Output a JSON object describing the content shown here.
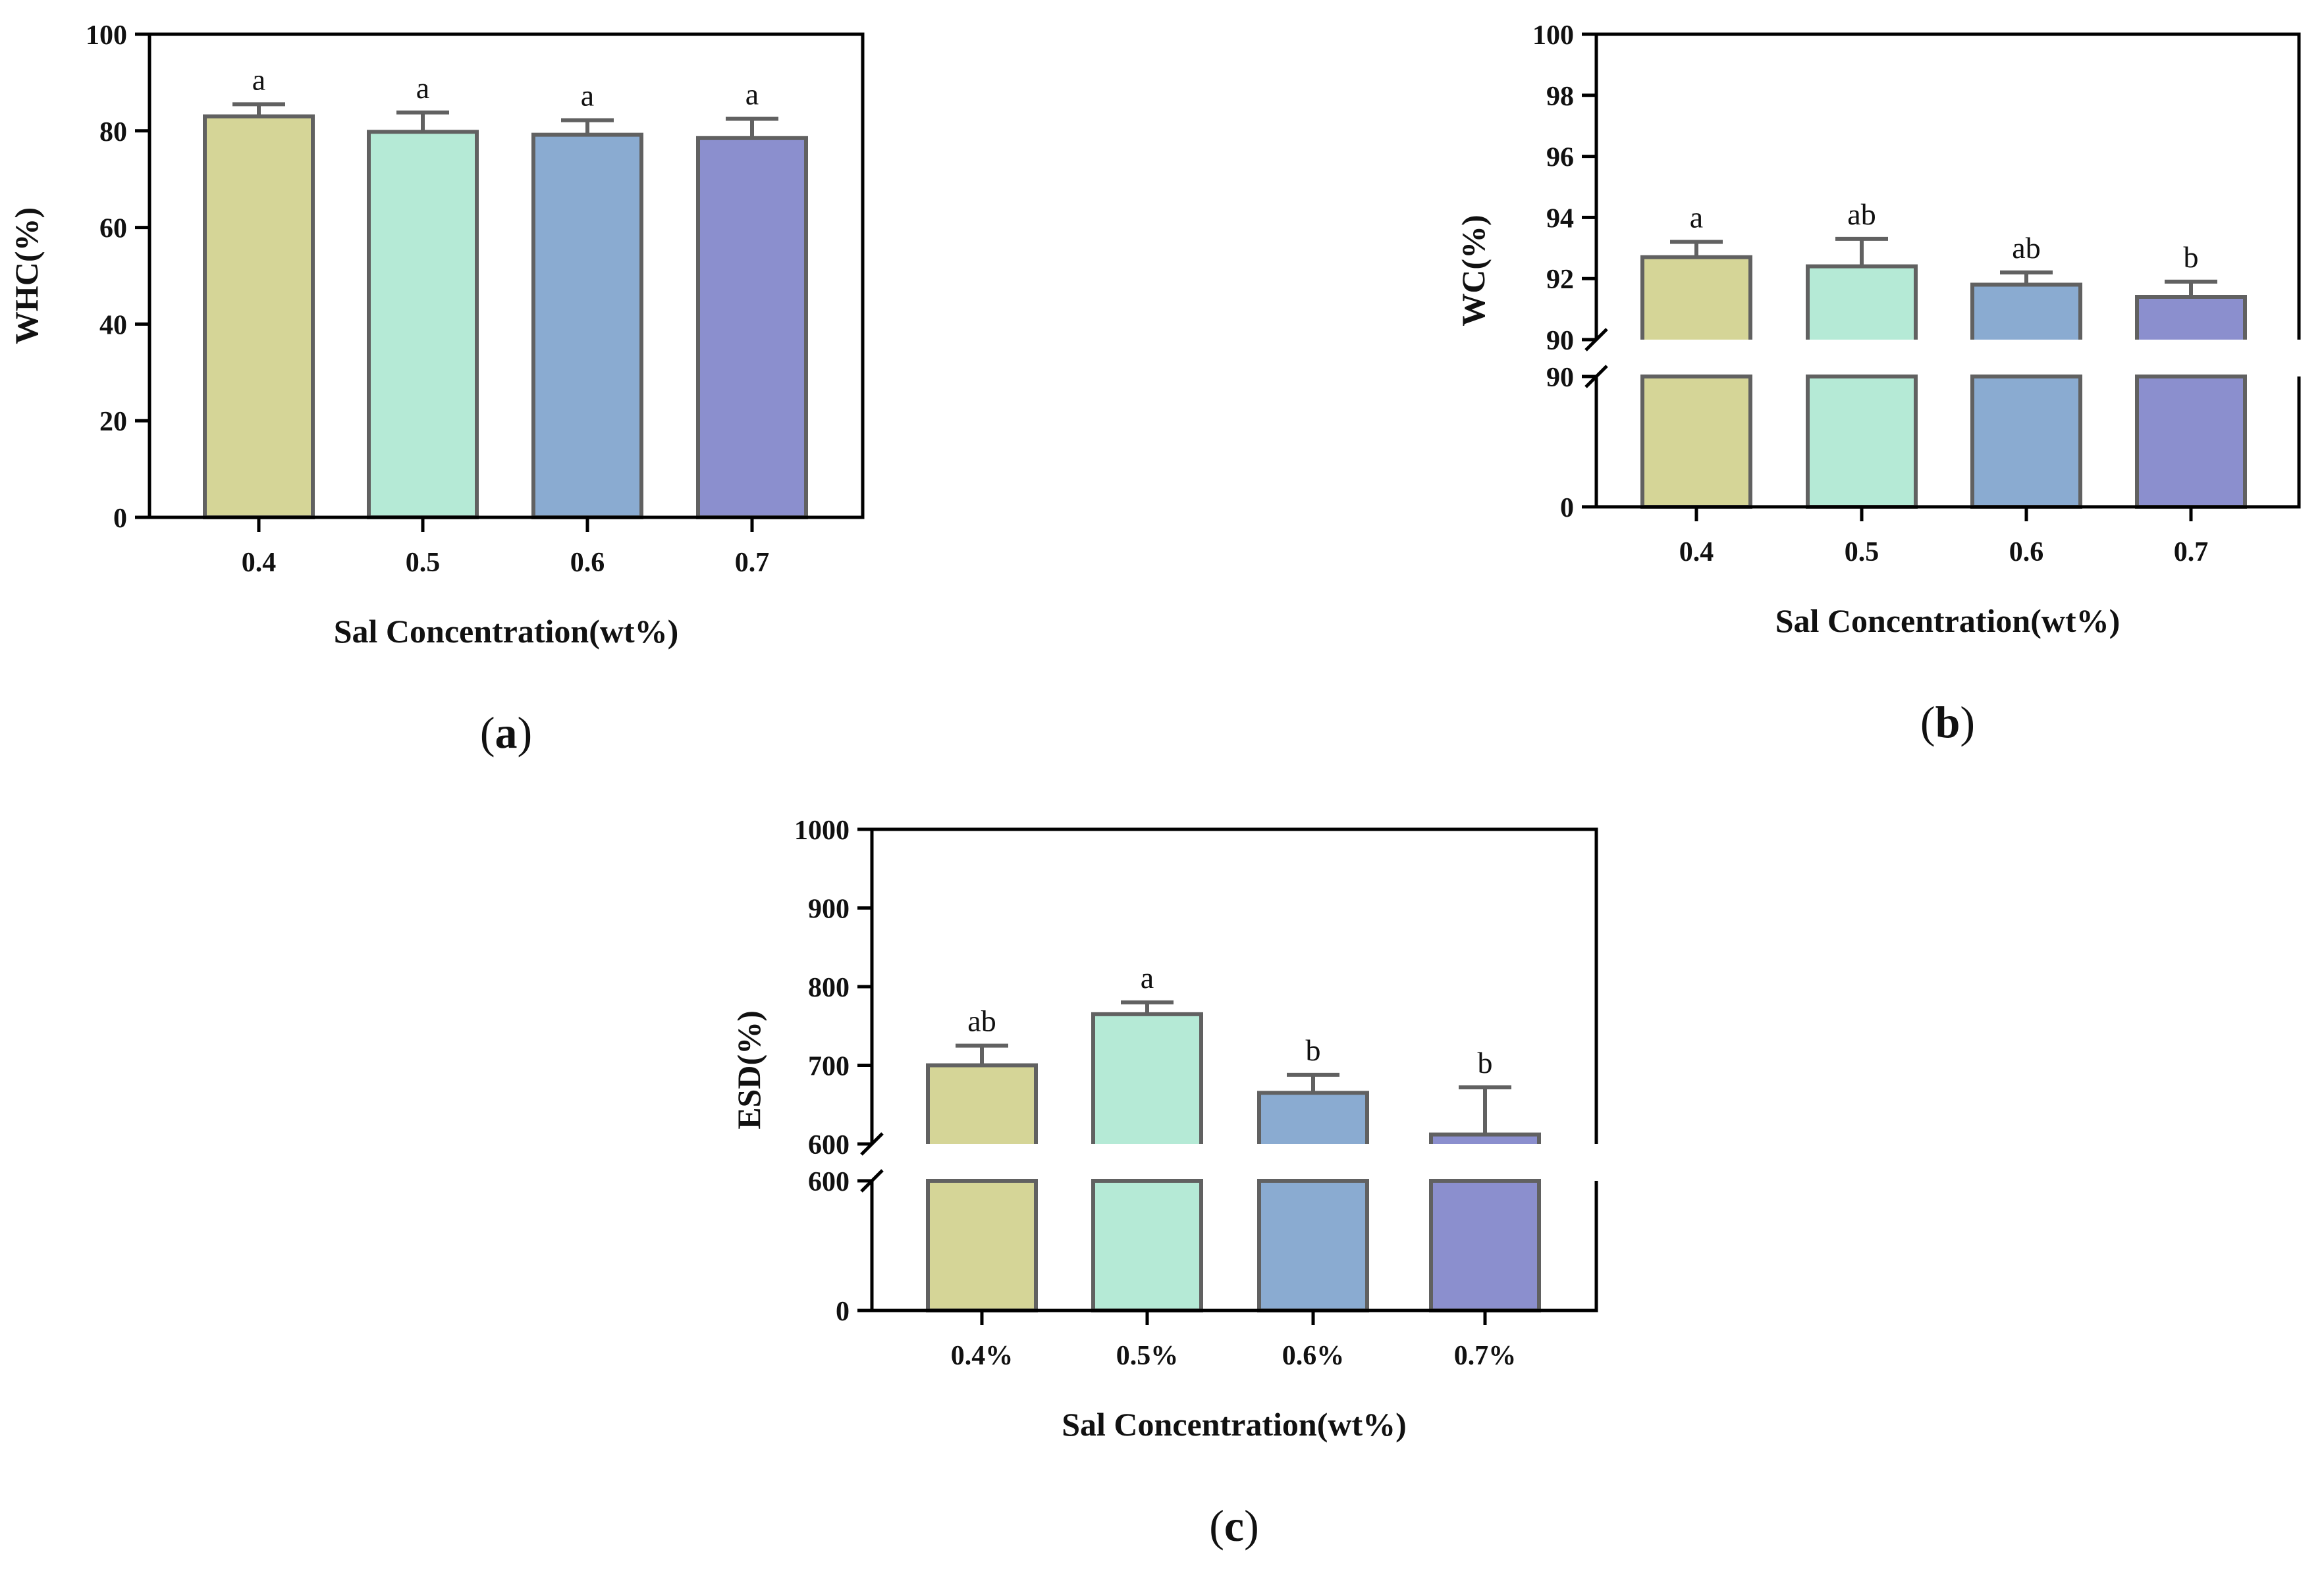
{
  "figure": {
    "colors": [
      "#d5d597",
      "#b5ead6",
      "#8aabd1",
      "#8b8fce"
    ],
    "bar_edge_color": "#616161"
  },
  "chart_data": [
    {
      "id": "a",
      "type": "bar",
      "panel_label": "a",
      "categories": [
        "0.4",
        "0.5",
        "0.6",
        "0.7"
      ],
      "values": [
        83,
        79.8,
        79.2,
        78.5
      ],
      "errors": [
        2.5,
        4,
        3,
        4
      ],
      "significance": [
        "a",
        "a",
        "a",
        "a"
      ],
      "ylabel": "WHC(%)",
      "xlabel": "Sal Concentration(wt%)",
      "ylim": [
        0,
        100
      ],
      "yticks": [
        "0",
        "20",
        "40",
        "60",
        "80",
        "100"
      ],
      "axis_break": null
    },
    {
      "id": "b",
      "type": "bar",
      "panel_label": "b",
      "categories": [
        "0.4",
        "0.5",
        "0.6",
        "0.7"
      ],
      "values": [
        92.7,
        92.4,
        91.8,
        91.4
      ],
      "errors": [
        0.5,
        0.9,
        0.4,
        0.5
      ],
      "significance": [
        "a",
        "ab",
        "ab",
        "b"
      ],
      "ylabel": "WC(%)",
      "xlabel": "Sal Concentration(wt%)",
      "ylim": [
        0,
        100
      ],
      "axis_break": [
        90,
        90
      ],
      "yticks_lower": [
        "0",
        "90"
      ],
      "yticks_upper": [
        "90",
        "92",
        "94",
        "96",
        "98",
        "100"
      ]
    },
    {
      "id": "c",
      "type": "bar",
      "panel_label": "c",
      "categories": [
        "0.4%",
        "0.5%",
        "0.6%",
        "0.7%"
      ],
      "values": [
        700,
        765,
        665,
        612
      ],
      "errors": [
        25,
        15,
        23,
        60
      ],
      "significance": [
        "ab",
        "a",
        "b",
        "b"
      ],
      "ylabel": "ESD(%)",
      "xlabel": "Sal Concentration(wt%)",
      "ylim": [
        0,
        1000
      ],
      "axis_break": [
        600,
        600
      ],
      "yticks_lower": [
        "0",
        "600"
      ],
      "yticks_upper": [
        "600",
        "700",
        "800",
        "900",
        "1000"
      ]
    }
  ]
}
